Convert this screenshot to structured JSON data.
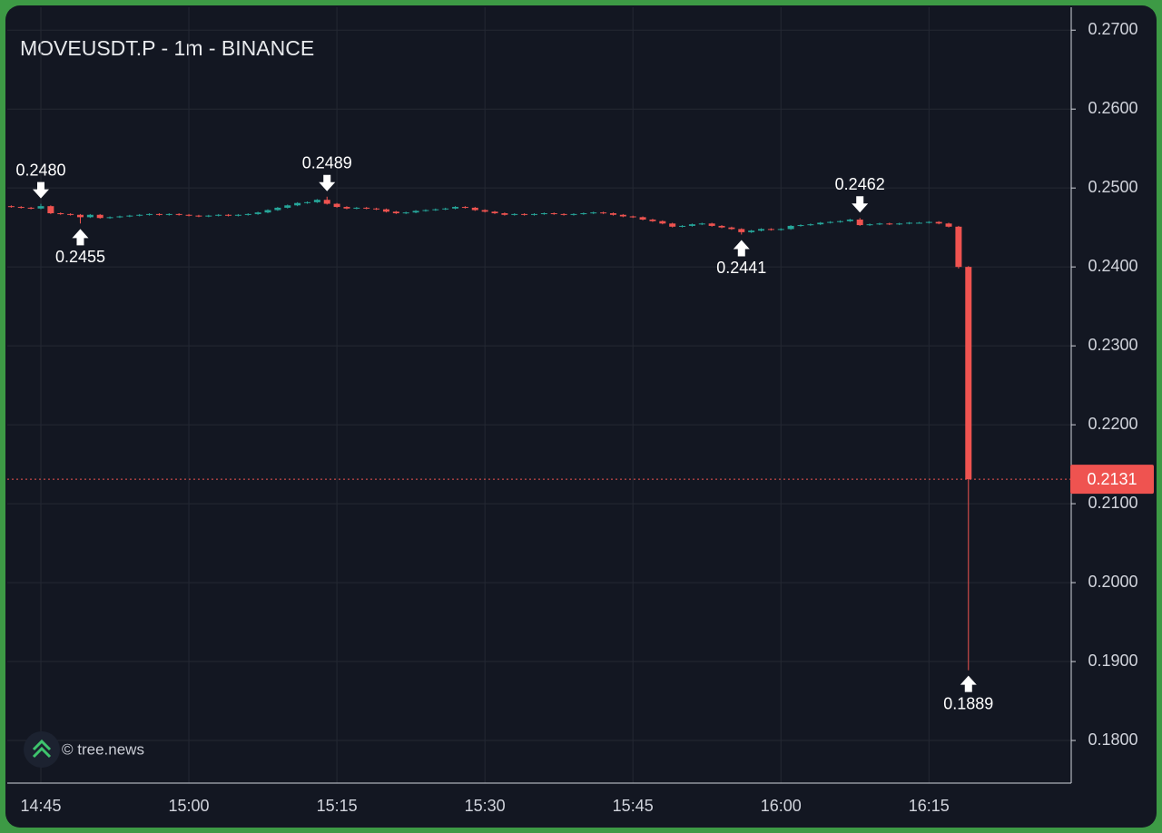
{
  "chart_data": {
    "type": "candlestick",
    "title": "MOVEUSDT.P - 1m - BINANCE",
    "watermark": "© tree.news",
    "up_color": "#26a69a",
    "down_color": "#ef5350",
    "grid": true,
    "categories": [
      null,
      null,
      null,
      "14:45",
      null,
      null,
      null,
      null,
      null,
      null,
      null,
      null,
      null,
      null,
      null,
      null,
      null,
      null,
      "15:00",
      null,
      null,
      null,
      null,
      null,
      null,
      null,
      null,
      null,
      null,
      null,
      null,
      null,
      null,
      "15:15",
      null,
      null,
      null,
      null,
      null,
      null,
      null,
      null,
      null,
      null,
      null,
      null,
      null,
      null,
      "15:30",
      null,
      null,
      null,
      null,
      null,
      null,
      null,
      null,
      null,
      null,
      null,
      null,
      null,
      null,
      "15:45",
      null,
      null,
      null,
      null,
      null,
      null,
      null,
      null,
      null,
      null,
      null,
      null,
      null,
      null,
      "16:00",
      null,
      null,
      null,
      null,
      null,
      null,
      null,
      null,
      null,
      null,
      null,
      null,
      null,
      null,
      "16:15",
      null,
      null,
      null,
      null
    ],
    "open": [
      0.2477,
      0.2476,
      0.2475,
      0.2474,
      0.2477,
      0.2468,
      0.2467,
      0.2466,
      0.2463,
      0.2466,
      0.2462,
      0.2463,
      0.2464,
      0.2465,
      0.2466,
      0.2467,
      0.2466,
      0.2467,
      0.2466,
      0.2465,
      0.2464,
      0.2465,
      0.2466,
      0.2465,
      0.2466,
      0.2467,
      0.2469,
      0.2472,
      0.2475,
      0.2478,
      0.2481,
      0.2482,
      0.2485,
      0.248,
      0.2476,
      0.2474,
      0.2475,
      0.2474,
      0.2473,
      0.247,
      0.2468,
      0.2469,
      0.2471,
      0.2472,
      0.2473,
      0.2474,
      0.2476,
      0.2475,
      0.2472,
      0.247,
      0.2468,
      0.2466,
      0.2467,
      0.2466,
      0.2467,
      0.2468,
      0.2467,
      0.2466,
      0.2467,
      0.2468,
      0.2469,
      0.2468,
      0.2466,
      0.2464,
      0.2463,
      0.246,
      0.2458,
      0.2455,
      0.2451,
      0.2452,
      0.2454,
      0.2455,
      0.2452,
      0.245,
      0.2448,
      0.2444,
      0.2446,
      0.2448,
      0.2447,
      0.2448,
      0.2452,
      0.2453,
      0.2454,
      0.2456,
      0.2457,
      0.2458,
      0.246,
      0.2453,
      0.2454,
      0.2455,
      0.2454,
      0.2455,
      0.2456,
      0.2456,
      0.2457,
      0.2455,
      0.2451,
      0.24
    ],
    "high": [
      0.2478,
      0.2477,
      0.2476,
      0.248,
      0.2478,
      0.2469,
      0.2468,
      0.2467,
      0.2467,
      0.2467,
      0.2464,
      0.2465,
      0.2466,
      0.2467,
      0.2468,
      0.2468,
      0.2468,
      0.2468,
      0.2467,
      0.2466,
      0.2466,
      0.2467,
      0.2467,
      0.2467,
      0.2468,
      0.247,
      0.2473,
      0.2476,
      0.2479,
      0.2482,
      0.2483,
      0.2486,
      0.2489,
      0.2481,
      0.2477,
      0.2476,
      0.2476,
      0.2475,
      0.2474,
      0.2471,
      0.247,
      0.2472,
      0.2473,
      0.2474,
      0.2475,
      0.2477,
      0.2477,
      0.2476,
      0.2473,
      0.2471,
      0.2469,
      0.2468,
      0.2468,
      0.2468,
      0.2469,
      0.2469,
      0.2468,
      0.2468,
      0.2469,
      0.247,
      0.247,
      0.2469,
      0.2467,
      0.2465,
      0.2464,
      0.2461,
      0.2459,
      0.2456,
      0.2453,
      0.2455,
      0.2456,
      0.2456,
      0.2453,
      0.2451,
      0.2449,
      0.2447,
      0.2449,
      0.2449,
      0.2449,
      0.2453,
      0.2454,
      0.2455,
      0.2457,
      0.2458,
      0.2459,
      0.2461,
      0.2462,
      0.2455,
      0.2456,
      0.2456,
      0.2456,
      0.2457,
      0.2457,
      0.2458,
      0.2458,
      0.2456,
      0.2452,
      0.2401
    ],
    "low": [
      0.2475,
      0.2474,
      0.2473,
      0.2473,
      0.2467,
      0.2466,
      0.2465,
      0.2455,
      0.2462,
      0.2461,
      0.2461,
      0.2462,
      0.2463,
      0.2464,
      0.2465,
      0.2465,
      0.2465,
      0.2465,
      0.2464,
      0.2463,
      0.2463,
      0.2464,
      0.2464,
      0.2464,
      0.2465,
      0.2466,
      0.2468,
      0.2471,
      0.2474,
      0.2477,
      0.248,
      0.2481,
      0.2479,
      0.2475,
      0.2473,
      0.2473,
      0.2473,
      0.2472,
      0.2469,
      0.2467,
      0.2467,
      0.2468,
      0.247,
      0.2471,
      0.2472,
      0.2473,
      0.2474,
      0.2471,
      0.2469,
      0.2467,
      0.2465,
      0.2465,
      0.2465,
      0.2465,
      0.2466,
      0.2466,
      0.2465,
      0.2465,
      0.2466,
      0.2467,
      0.2467,
      0.2465,
      0.2463,
      0.2462,
      0.2459,
      0.2457,
      0.2454,
      0.245,
      0.245,
      0.2451,
      0.2453,
      0.2451,
      0.2449,
      0.2447,
      0.2441,
      0.2443,
      0.2445,
      0.2446,
      0.2446,
      0.2447,
      0.2451,
      0.2452,
      0.2453,
      0.2455,
      0.2456,
      0.2457,
      0.2452,
      0.2452,
      0.2453,
      0.2453,
      0.2453,
      0.2454,
      0.2455,
      0.2455,
      0.2454,
      0.245,
      0.2398,
      0.1889
    ],
    "close": [
      0.2476,
      0.2475,
      0.2474,
      0.2477,
      0.2468,
      0.2467,
      0.2466,
      0.2463,
      0.2466,
      0.2462,
      0.2463,
      0.2464,
      0.2465,
      0.2466,
      0.2467,
      0.2466,
      0.2467,
      0.2466,
      0.2465,
      0.2464,
      0.2465,
      0.2466,
      0.2465,
      0.2466,
      0.2467,
      0.2469,
      0.2472,
      0.2475,
      0.2478,
      0.2481,
      0.2482,
      0.2485,
      0.248,
      0.2476,
      0.2474,
      0.2475,
      0.2474,
      0.2473,
      0.247,
      0.2468,
      0.2469,
      0.2471,
      0.2472,
      0.2473,
      0.2474,
      0.2476,
      0.2475,
      0.2472,
      0.247,
      0.2468,
      0.2466,
      0.2467,
      0.2466,
      0.2467,
      0.2468,
      0.2467,
      0.2466,
      0.2467,
      0.2468,
      0.2469,
      0.2468,
      0.2466,
      0.2464,
      0.2463,
      0.246,
      0.2458,
      0.2455,
      0.2451,
      0.2452,
      0.2454,
      0.2455,
      0.2452,
      0.245,
      0.2448,
      0.2444,
      0.2446,
      0.2448,
      0.2447,
      0.2448,
      0.2452,
      0.2453,
      0.2454,
      0.2456,
      0.2457,
      0.2458,
      0.246,
      0.2453,
      0.2454,
      0.2455,
      0.2454,
      0.2455,
      0.2456,
      0.2456,
      0.2457,
      0.2455,
      0.2451,
      0.24,
      0.2131
    ],
    "annotations": [
      {
        "index": 3,
        "arrow": "down",
        "value": 0.248,
        "label": "0.2480"
      },
      {
        "index": 7,
        "arrow": "up",
        "value": 0.2455,
        "label": "0.2455"
      },
      {
        "index": 32,
        "arrow": "down",
        "value": 0.2489,
        "label": "0.2489"
      },
      {
        "index": 74,
        "arrow": "up",
        "value": 0.2441,
        "label": "0.2441"
      },
      {
        "index": 86,
        "arrow": "down",
        "value": 0.2462,
        "label": "0.2462"
      },
      {
        "index": 97,
        "arrow": "up",
        "value": 0.1889,
        "label": "0.1889"
      }
    ],
    "last_price": 0.2131,
    "ylim": [
      0.1746,
      0.2729
    ],
    "yticks": [
      {
        "value": 0.18,
        "label": "0.1800"
      },
      {
        "value": 0.19,
        "label": "0.1900"
      },
      {
        "value": 0.2,
        "label": "0.2000"
      },
      {
        "value": 0.21,
        "label": "0.2100"
      },
      {
        "value": 0.22,
        "label": "0.2200"
      },
      {
        "value": 0.23,
        "label": "0.2300"
      },
      {
        "value": 0.24,
        "label": "0.2400"
      },
      {
        "value": 0.25,
        "label": "0.2500"
      },
      {
        "value": 0.26,
        "label": "0.2600"
      },
      {
        "value": 0.27,
        "label": "0.2700"
      }
    ]
  }
}
